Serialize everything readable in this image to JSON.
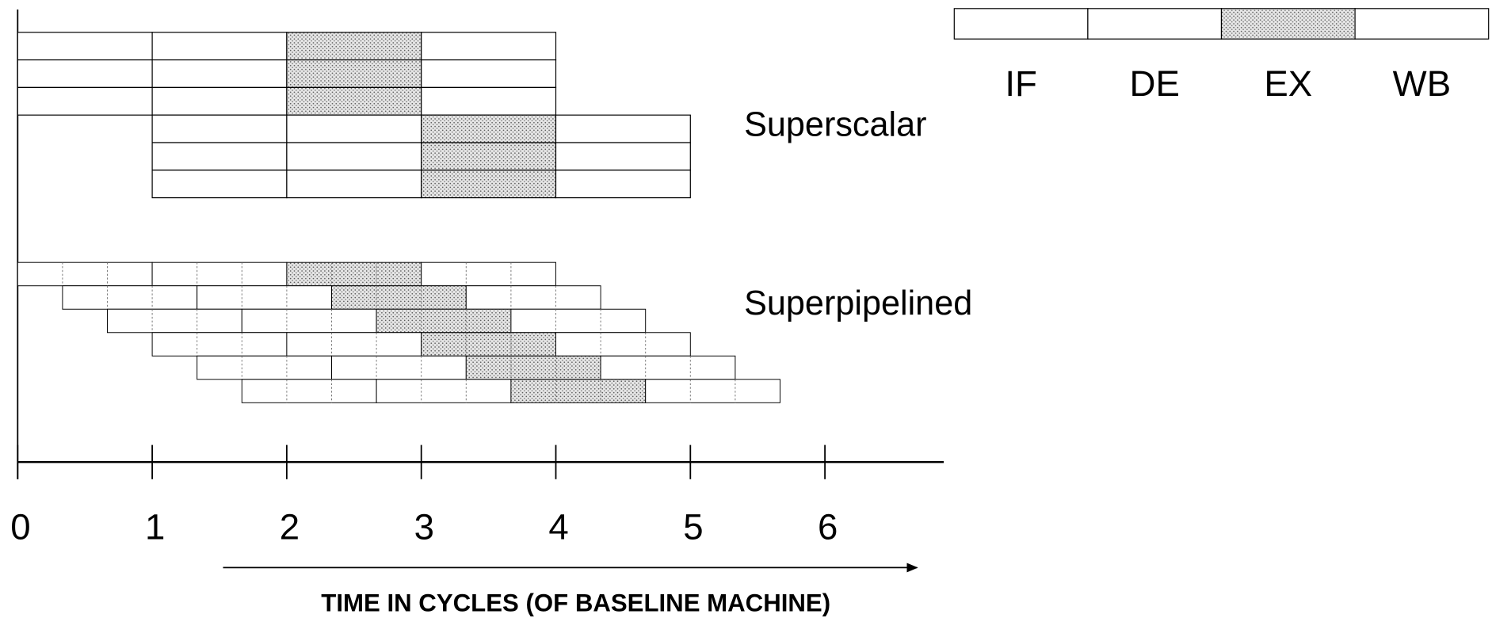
{
  "legend": {
    "stages": [
      "IF",
      "DE",
      "EX",
      "WB"
    ]
  },
  "labels": {
    "superscalar": "Superscalar",
    "superpipelined": "Superpipelined"
  },
  "axis": {
    "ticks": [
      0,
      1,
      2,
      3,
      4,
      5,
      6
    ],
    "label": "TIME IN CYCLES (OF BASELINE MACHINE)"
  }
}
